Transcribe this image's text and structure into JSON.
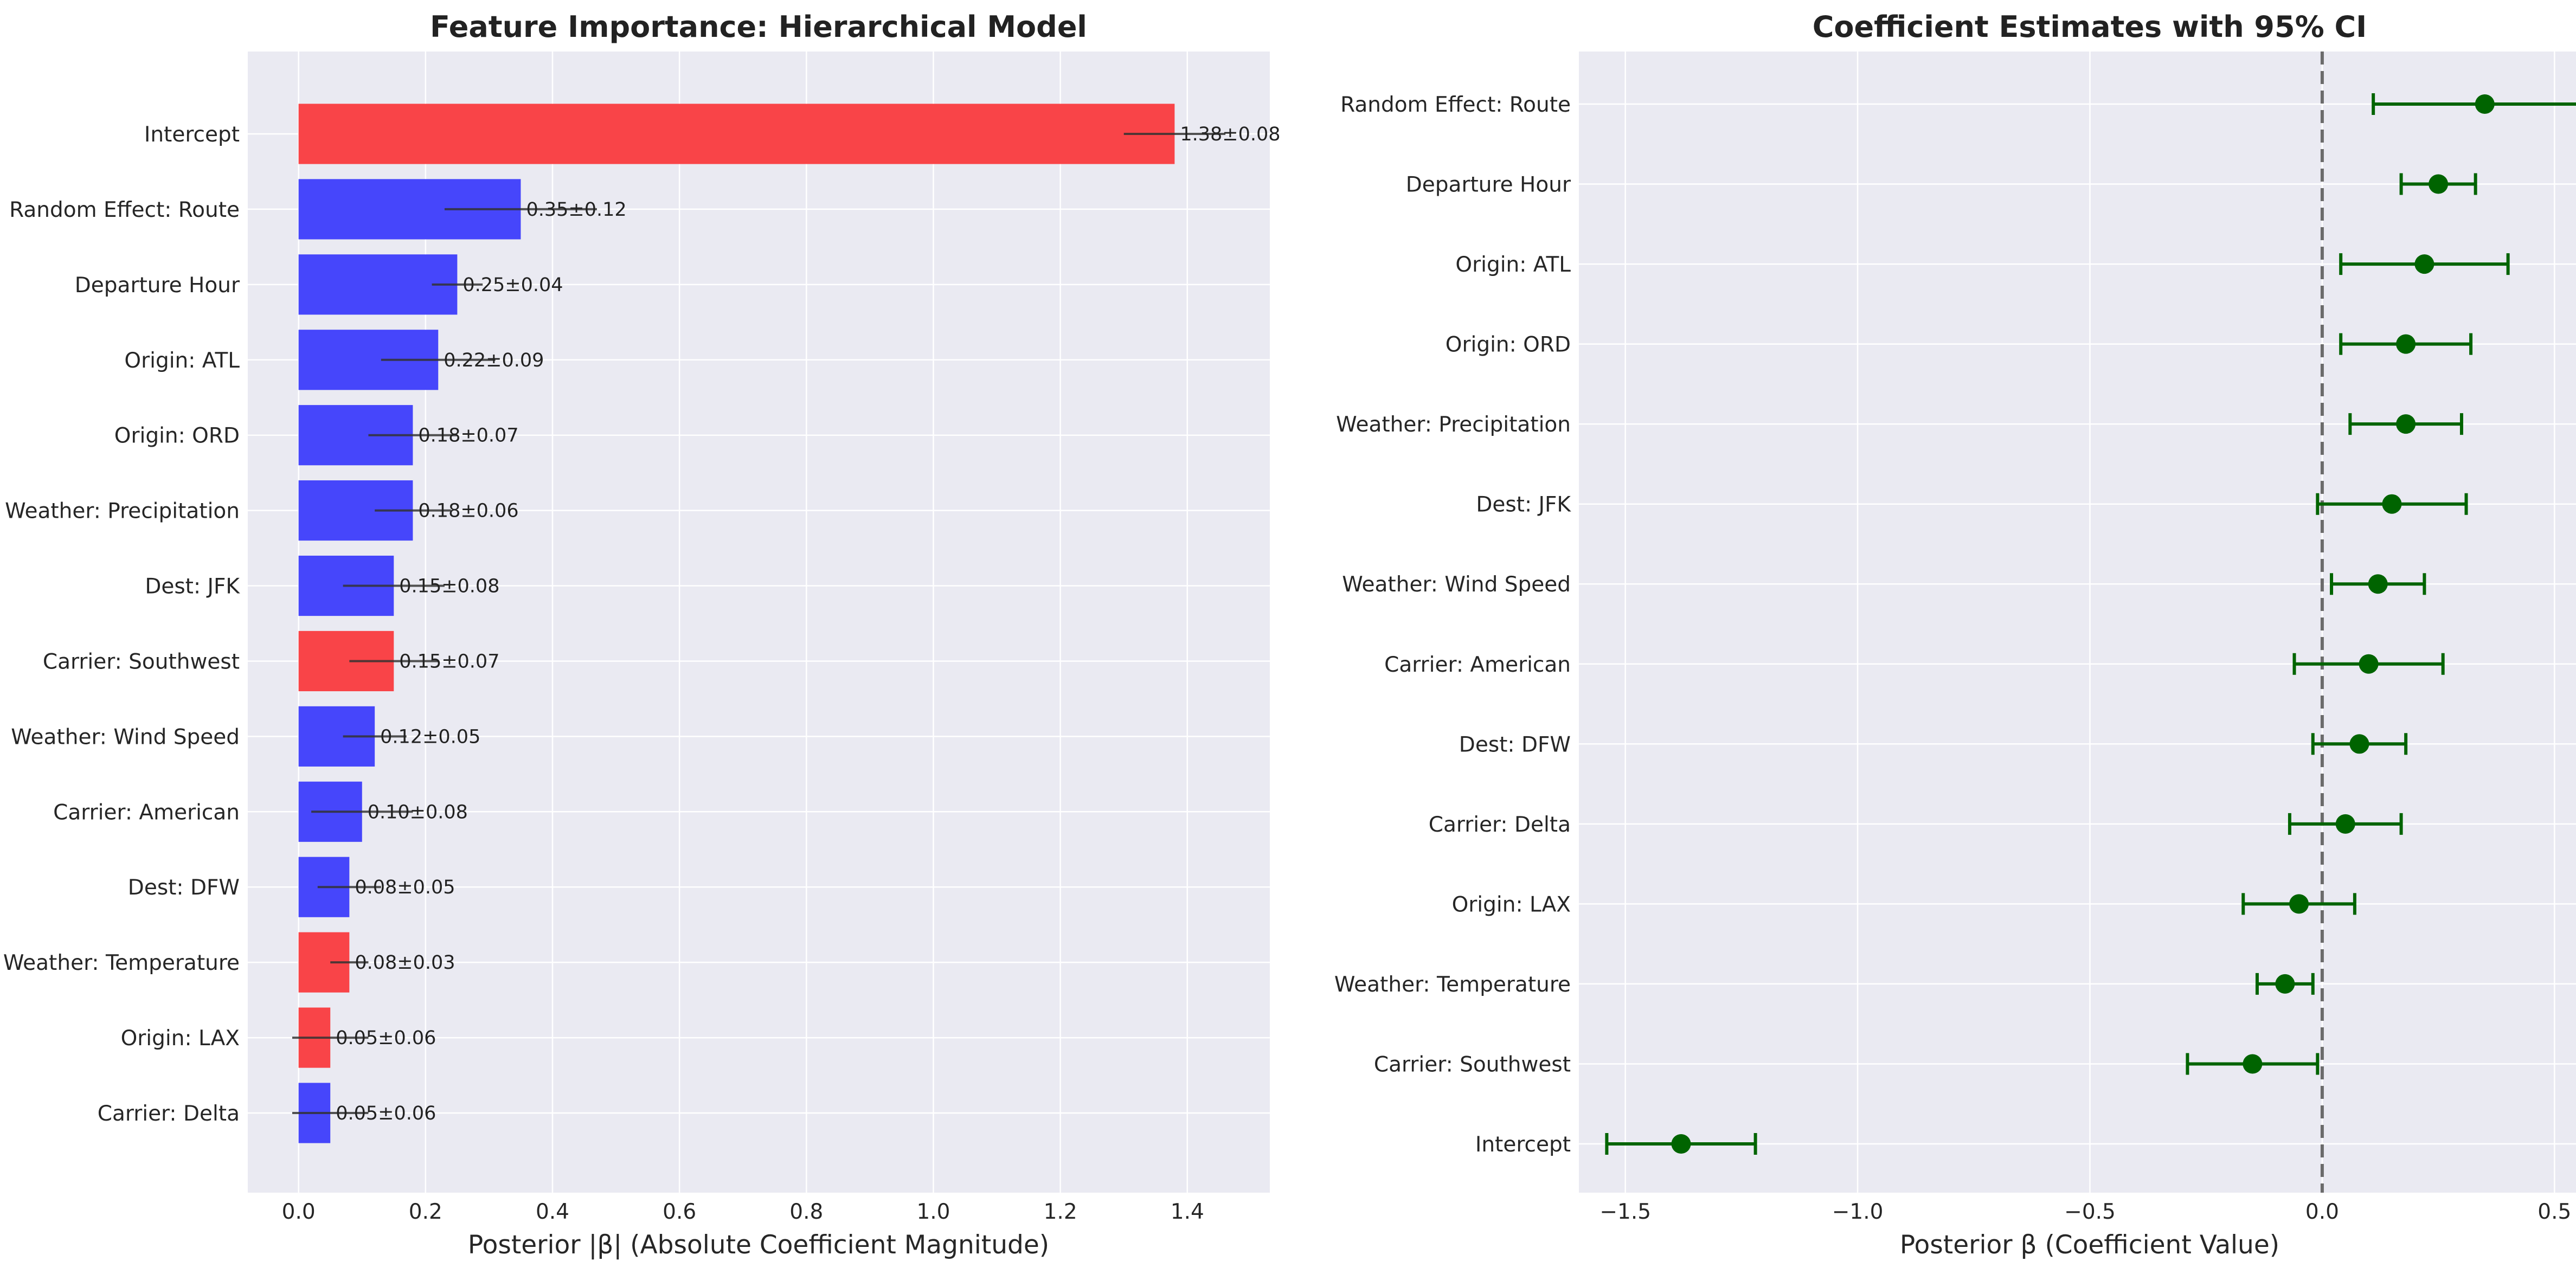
{
  "chart_data": [
    {
      "type": "bar",
      "orientation": "horizontal",
      "title": "Feature Importance: Hierarchical Model",
      "xlabel": "Posterior |β| (Absolute Coefficient Magnitude)",
      "ylabel": "",
      "xlim": [
        -0.08,
        1.53
      ],
      "xticks": [
        0.0,
        0.2,
        0.4,
        0.6,
        0.8,
        1.0,
        1.2,
        1.4
      ],
      "xtick_labels": [
        "0.0",
        "0.2",
        "0.4",
        "0.6",
        "0.8",
        "1.0",
        "1.2",
        "1.4"
      ],
      "grid": true,
      "categories": [
        "Intercept",
        "Random Effect: Route",
        "Departure Hour",
        "Origin: ATL",
        "Origin: ORD",
        "Weather: Precipitation",
        "Dest: JFK",
        "Carrier: Southwest",
        "Weather: Wind Speed",
        "Carrier: American",
        "Dest: DFW",
        "Weather: Temperature",
        "Origin: LAX",
        "Carrier: Delta"
      ],
      "values": [
        1.38,
        0.35,
        0.25,
        0.22,
        0.18,
        0.18,
        0.15,
        0.15,
        0.12,
        0.1,
        0.08,
        0.08,
        0.05,
        0.05
      ],
      "errors": [
        0.08,
        0.12,
        0.04,
        0.09,
        0.07,
        0.06,
        0.08,
        0.07,
        0.05,
        0.08,
        0.05,
        0.03,
        0.06,
        0.06
      ],
      "value_labels": [
        "1.38±0.08",
        "0.35±0.12",
        "0.25±0.04",
        "0.22±0.09",
        "0.18±0.07",
        "0.18±0.06",
        "0.15±0.08",
        "0.15±0.07",
        "0.12±0.05",
        "0.10±0.08",
        "0.08±0.05",
        "0.08±0.03",
        "0.05±0.06",
        "0.05±0.06"
      ],
      "bar_colors": [
        "#f94448",
        "#4646fb",
        "#4646fb",
        "#4646fb",
        "#4646fb",
        "#4646fb",
        "#4646fb",
        "#f94448",
        "#4646fb",
        "#4646fb",
        "#4646fb",
        "#f94448",
        "#f94448",
        "#4646fb"
      ]
    },
    {
      "type": "scatter",
      "subtype": "errorbar",
      "title": "Coefficient Estimates with 95% CI",
      "xlabel": "Posterior β (Coefficient Value)",
      "ylabel": "",
      "xlim": [
        -1.6,
        0.6
      ],
      "xticks": [
        -1.5,
        -1.0,
        -0.5,
        0.0,
        0.5
      ],
      "xtick_labels": [
        "−1.5",
        "−1.0",
        "−0.5",
        "0.0",
        "0.5"
      ],
      "reference_line": 0,
      "grid": true,
      "categories": [
        "Random Effect: Route",
        "Departure Hour",
        "Origin: ATL",
        "Origin: ORD",
        "Weather: Precipitation",
        "Dest: JFK",
        "Weather: Wind Speed",
        "Carrier: American",
        "Dest: DFW",
        "Carrier: Delta",
        "Origin: LAX",
        "Weather: Temperature",
        "Carrier: Southwest",
        "Intercept"
      ],
      "values": [
        0.35,
        0.25,
        0.22,
        0.18,
        0.18,
        0.15,
        0.12,
        0.1,
        0.08,
        0.05,
        -0.05,
        -0.08,
        -0.15,
        -1.38
      ],
      "ci_low": [
        0.11,
        0.17,
        0.04,
        0.04,
        0.06,
        -0.01,
        0.02,
        -0.06,
        -0.02,
        -0.07,
        -0.17,
        -0.14,
        -0.29,
        -1.54
      ],
      "ci_high": [
        0.59,
        0.33,
        0.4,
        0.32,
        0.3,
        0.31,
        0.22,
        0.26,
        0.18,
        0.17,
        0.07,
        -0.02,
        -0.01,
        -1.22
      ],
      "marker_color": "#006400"
    }
  ]
}
